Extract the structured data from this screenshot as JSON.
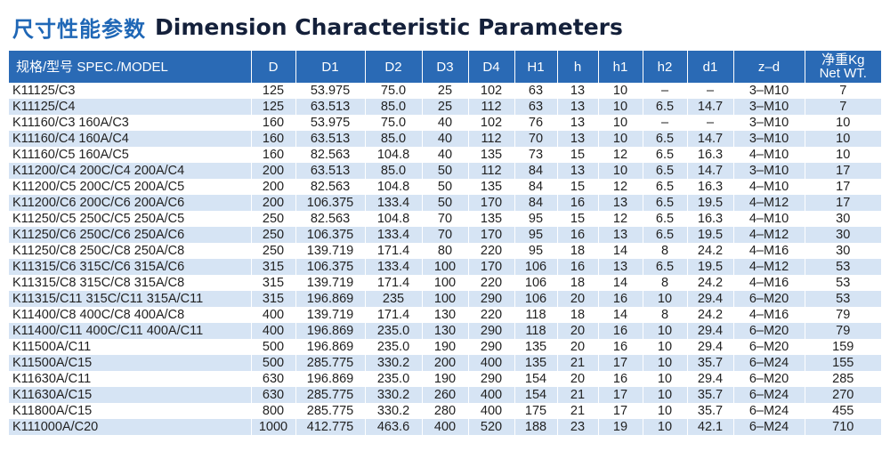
{
  "title": {
    "zh": "尺寸性能参数",
    "en": "Dimension Characteristic Parameters"
  },
  "headers": {
    "model": "规格/型号 SPEC./MODEL",
    "D": "D",
    "D1": "D1",
    "D2": "D2",
    "D3": "D3",
    "D4": "D4",
    "H1": "H1",
    "h": "h",
    "h1": "h1",
    "h2": "h2",
    "d1": "d1",
    "zd": "z–d",
    "wt_line1": "净重Kg",
    "wt_line2": "Net WT."
  },
  "rows": [
    [
      "K11125/C3",
      "125",
      "53.975",
      "75.0",
      "25",
      "102",
      "63",
      "13",
      "10",
      "–",
      "–",
      "3–M10",
      "7"
    ],
    [
      "K11125/C4",
      "125",
      "63.513",
      "85.0",
      "25",
      "112",
      "63",
      "13",
      "10",
      "6.5",
      "14.7",
      "3–M10",
      "7"
    ],
    [
      "K11160/C3  160A/C3",
      "160",
      "53.975",
      "75.0",
      "40",
      "102",
      "76",
      "13",
      "10",
      "–",
      "–",
      "3–M10",
      "10"
    ],
    [
      "K11160/C4  160A/C4",
      "160",
      "63.513",
      "85.0",
      "40",
      "112",
      "70",
      "13",
      "10",
      "6.5",
      "14.7",
      "3–M10",
      "10"
    ],
    [
      "K11160/C5  160A/C5",
      "160",
      "82.563",
      "104.8",
      "40",
      "135",
      "73",
      "15",
      "12",
      "6.5",
      "16.3",
      "4–M10",
      "10"
    ],
    [
      "K11200/C4  200C/C4  200A/C4",
      "200",
      "63.513",
      "85.0",
      "50",
      "112",
      "84",
      "13",
      "10",
      "6.5",
      "14.7",
      "3–M10",
      "17"
    ],
    [
      "K11200/C5  200C/C5  200A/C5",
      "200",
      "82.563",
      "104.8",
      "50",
      "135",
      "84",
      "15",
      "12",
      "6.5",
      "16.3",
      "4–M10",
      "17"
    ],
    [
      "K11200/C6  200C/C6  200A/C6",
      "200",
      "106.375",
      "133.4",
      "50",
      "170",
      "84",
      "16",
      "13",
      "6.5",
      "19.5",
      "4–M12",
      "17"
    ],
    [
      "K11250/C5  250C/C5  250A/C5",
      "250",
      "82.563",
      "104.8",
      "70",
      "135",
      "95",
      "15",
      "12",
      "6.5",
      "16.3",
      "4–M10",
      "30"
    ],
    [
      "K11250/C6  250C/C6  250A/C6",
      "250",
      "106.375",
      "133.4",
      "70",
      "170",
      "95",
      "16",
      "13",
      "6.5",
      "19.5",
      "4–M12",
      "30"
    ],
    [
      "K11250/C8  250C/C8  250A/C8",
      "250",
      "139.719",
      "171.4",
      "80",
      "220",
      "95",
      "18",
      "14",
      "8",
      "24.2",
      "4–M16",
      "30"
    ],
    [
      "K11315/C6  315C/C6 315A/C6",
      "315",
      "106.375",
      "133.4",
      "100",
      "170",
      "106",
      "16",
      "13",
      "6.5",
      "19.5",
      "4–M12",
      "53"
    ],
    [
      "K11315/C8  315C/C8  315A/C8",
      "315",
      "139.719",
      "171.4",
      "100",
      "220",
      "106",
      "18",
      "14",
      "8",
      "24.2",
      "4–M16",
      "53"
    ],
    [
      "K11315/C11  315C/C11  315A/C11",
      "315",
      "196.869",
      "235",
      "100",
      "290",
      "106",
      "20",
      "16",
      "10",
      "29.4",
      "6–M20",
      "53"
    ],
    [
      "K11400/C8  400C/C8  400A/C8",
      "400",
      "139.719",
      "171.4",
      "130",
      "220",
      "118",
      "18",
      "14",
      "8",
      "24.2",
      "4–M16",
      "79"
    ],
    [
      "K11400/C11 400C/C11  400A/C11",
      "400",
      "196.869",
      "235.0",
      "130",
      "290",
      "118",
      "20",
      "16",
      "10",
      "29.4",
      "6–M20",
      "79"
    ],
    [
      "K11500A/C11",
      "500",
      "196.869",
      "235.0",
      "190",
      "290",
      "135",
      "20",
      "16",
      "10",
      "29.4",
      "6–M20",
      "159"
    ],
    [
      "K11500A/C15",
      "500",
      "285.775",
      "330.2",
      "200",
      "400",
      "135",
      "21",
      "17",
      "10",
      "35.7",
      "6–M24",
      "155"
    ],
    [
      "K11630A/C11",
      "630",
      "196.869",
      "235.0",
      "190",
      "290",
      "154",
      "20",
      "16",
      "10",
      "29.4",
      "6–M20",
      "285"
    ],
    [
      "K11630A/C15",
      "630",
      "285.775",
      "330.2",
      "260",
      "400",
      "154",
      "21",
      "17",
      "10",
      "35.7",
      "6–M24",
      "270"
    ],
    [
      "K11800A/C15",
      "800",
      "285.775",
      "330.2",
      "280",
      "400",
      "175",
      "21",
      "17",
      "10",
      "35.7",
      "6–M24",
      "455"
    ],
    [
      "K111000A/C20",
      "1000",
      "412.775",
      "463.6",
      "400",
      "520",
      "188",
      "23",
      "19",
      "10",
      "42.1",
      "6–M24",
      "710"
    ]
  ]
}
